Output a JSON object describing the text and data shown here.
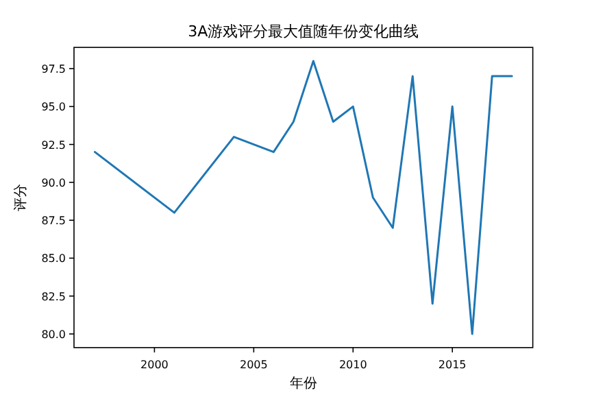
{
  "chart_data": {
    "type": "line",
    "title": "3A游戏评分最大值随年份变化曲线",
    "xlabel": "年份",
    "ylabel": "评分",
    "x": [
      1997,
      2001,
      2004,
      2006,
      2007,
      2008,
      2009,
      2010,
      2011,
      2012,
      2013,
      2014,
      2015,
      2016,
      2017,
      2018
    ],
    "series": [
      {
        "color": "#1f77b4",
        "values": [
          92,
          88,
          93,
          92,
          94,
          98,
          94,
          95,
          89,
          87,
          97,
          82,
          95,
          80,
          97,
          97
        ]
      }
    ],
    "xlim": [
      1995.95,
      2019.05
    ],
    "ylim": [
      79.1,
      98.9
    ],
    "xticks": [
      2000,
      2005,
      2010,
      2015
    ],
    "yticks": [
      {
        "value": 80,
        "label": "80.0"
      },
      {
        "value": 82.5,
        "label": "82.5"
      },
      {
        "value": 85,
        "label": "85.0"
      },
      {
        "value": 87.5,
        "label": "87.5"
      },
      {
        "value": 90,
        "label": "90.0"
      },
      {
        "value": 92.5,
        "label": "92.5"
      },
      {
        "value": 95,
        "label": "95.0"
      },
      {
        "value": 97.5,
        "label": "97.5"
      }
    ],
    "grid": false,
    "marker": "none",
    "line_style": "solid"
  }
}
